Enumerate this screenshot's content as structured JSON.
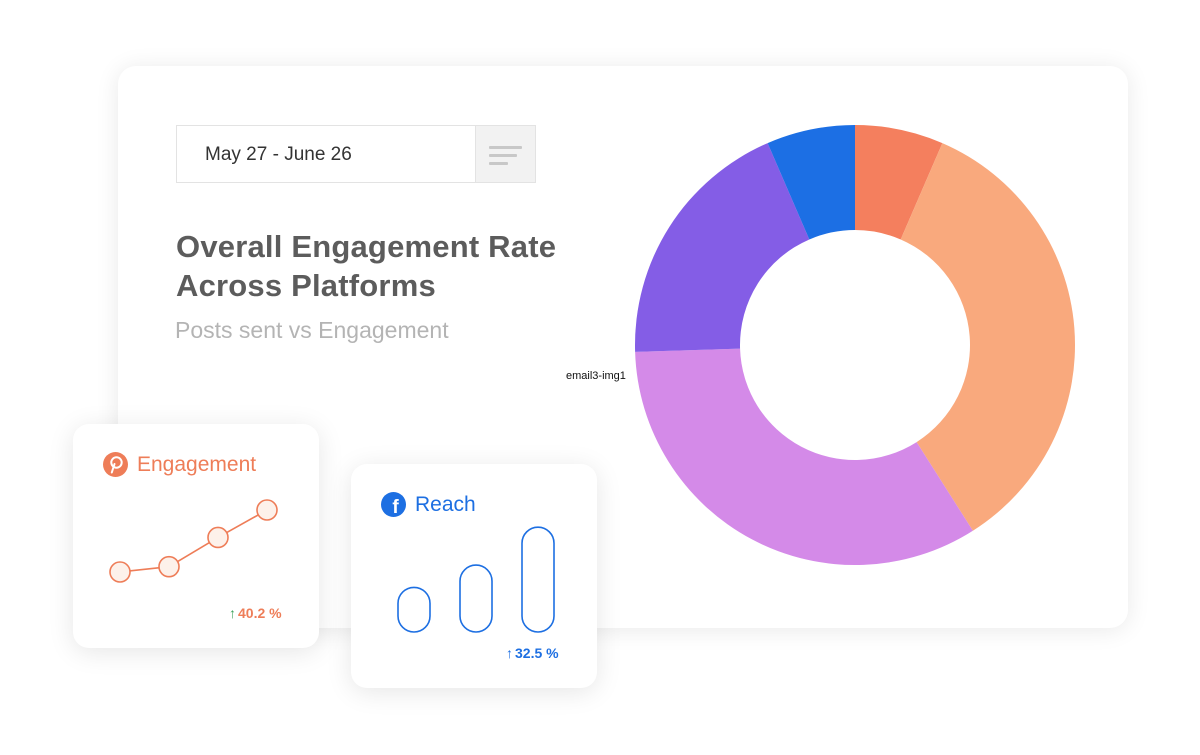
{
  "header": {
    "date_range": "May 27 - June 26",
    "title": "Overall Engagement Rate Across Platforms",
    "subtitle": "Posts sent vs Engagement"
  },
  "image_label": "email3-img1",
  "chart_data": [
    {
      "type": "pie",
      "variant": "donut",
      "slices": [
        {
          "value": 6.5,
          "color": "#f47f5e"
        },
        {
          "value": 34.5,
          "color": "#f9a97d"
        },
        {
          "value": 33.5,
          "color": "#d48ae8"
        },
        {
          "value": 19,
          "color": "#845de6"
        },
        {
          "value": 6.5,
          "color": "#1c6fe4"
        }
      ]
    },
    {
      "type": "line",
      "title": "Engagement",
      "icon": "pinterest-icon",
      "color": "#ee7d58",
      "values": [
        1,
        1.6,
        4.9,
        8
      ],
      "change": "40.2 %",
      "change_direction": "up"
    },
    {
      "type": "bar",
      "title": "Reach",
      "icon": "facebook-icon",
      "color": "#1d6fe2",
      "values": [
        2,
        3,
        4.7
      ],
      "change": "32.5 %",
      "change_direction": "up"
    }
  ]
}
